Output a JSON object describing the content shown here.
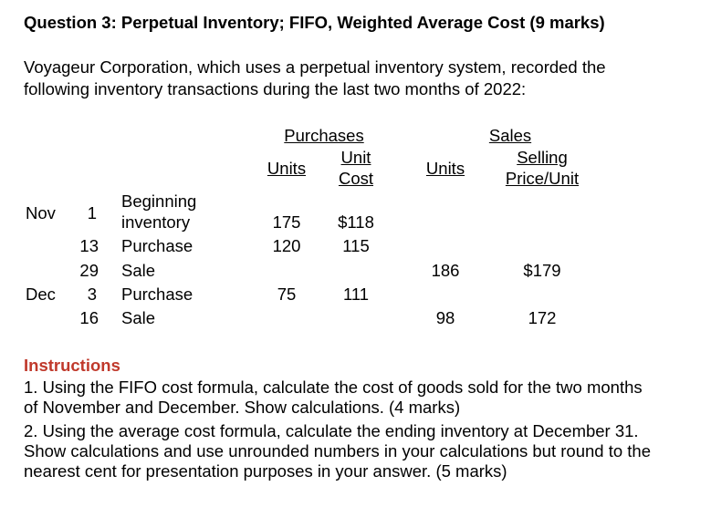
{
  "question_title": "Question 3: Perpetual Inventory; FIFO, Weighted Average Cost (9 marks)",
  "intro": {
    "line1": "Voyageur Corporation, which uses a perpetual inventory system, recorded the",
    "line2": "following inventory transactions during the last two months of 2022:"
  },
  "table": {
    "purchases_header": "Purchases",
    "sales_header": "Sales",
    "col_units": "Units",
    "col_unit_cost_1": "Unit",
    "col_unit_cost_2": "Cost",
    "col_sales_units": "Units",
    "col_selling_price_1": "Selling",
    "col_selling_price_2": "Price/Unit",
    "rows": [
      {
        "month": "Nov",
        "day": "1",
        "desc1": "Beginning",
        "desc2": "inventory",
        "p_units": "175",
        "p_cost": "$118",
        "s_units": "",
        "s_price": ""
      },
      {
        "month": "",
        "day": "13",
        "desc1": "Purchase",
        "desc2": "",
        "p_units": "120",
        "p_cost": "115",
        "s_units": "",
        "s_price": ""
      },
      {
        "month": "",
        "day": "29",
        "desc1": "Sale",
        "desc2": "",
        "p_units": "",
        "p_cost": "",
        "s_units": "186",
        "s_price": "$179"
      },
      {
        "month": "Dec",
        "day": "3",
        "desc1": "Purchase",
        "desc2": "",
        "p_units": "75",
        "p_cost": "111",
        "s_units": "",
        "s_price": ""
      },
      {
        "month": "",
        "day": "16",
        "desc1": "Sale",
        "desc2": "",
        "p_units": "",
        "p_cost": "",
        "s_units": "98",
        "s_price": "172"
      }
    ]
  },
  "instructions": {
    "heading": "Instructions",
    "item1_line1": "1.  Using the FIFO cost formula, calculate the cost of goods sold for the two months",
    "item1_line2": "of November and December. Show calculations. (4 marks)",
    "item2_line1": "2.  Using the average cost formula, calculate the ending inventory at December 31.",
    "item2_line2": "Show calculations and use unrounded numbers in your calculations but round to the",
    "item2_line3": "nearest cent for presentation purposes in your answer. (5 marks)"
  }
}
